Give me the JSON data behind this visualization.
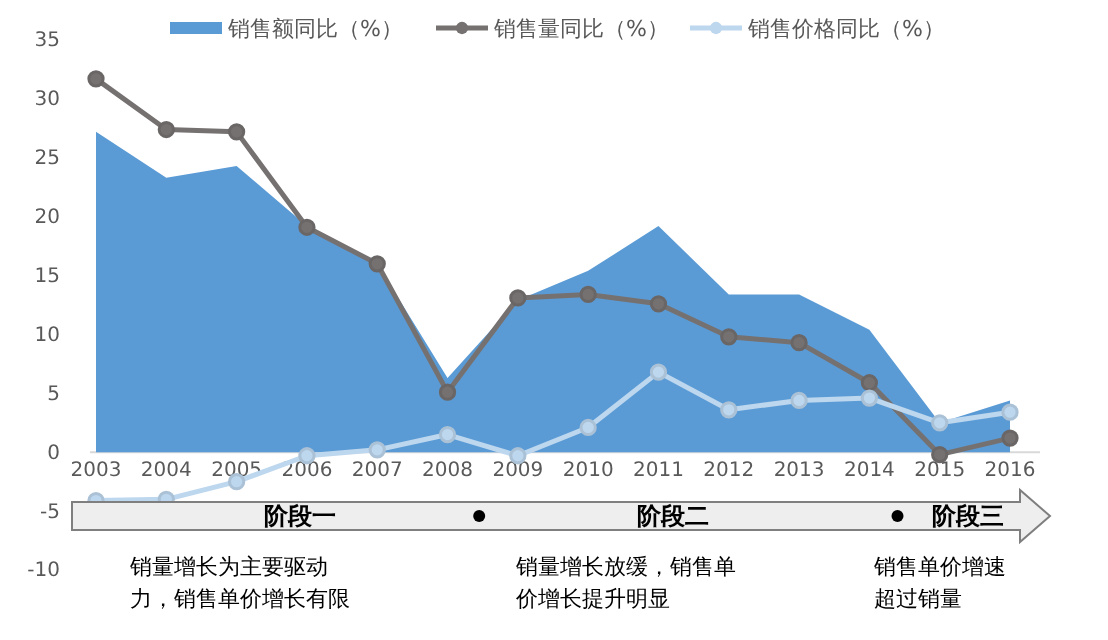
{
  "chart_data": {
    "type": "area",
    "categories": [
      "2003",
      "2004",
      "2005",
      "2006",
      "2007",
      "2008",
      "2009",
      "2010",
      "2011",
      "2012",
      "2013",
      "2014",
      "2015",
      "2016"
    ],
    "series": [
      {
        "name": "销售额同比（%）",
        "type": "area",
        "color": "#5b9bd5",
        "values": [
          27.2,
          23.3,
          24.3,
          19.2,
          16,
          6.3,
          12.9,
          15.4,
          19.2,
          13.4,
          13.4,
          10.4,
          2.5,
          4.4
        ]
      },
      {
        "name": "销售量同比（%）",
        "type": "line",
        "marker": "circle",
        "color": "#767171",
        "values": [
          31.7,
          27.4,
          27.2,
          19.1,
          16,
          5.1,
          13.1,
          13.4,
          12.6,
          9.8,
          9.3,
          5.9,
          -0.2,
          1.2
        ]
      },
      {
        "name": "销售价格同比（%）",
        "type": "line",
        "marker": "circle",
        "color": "#bdd7ee",
        "values": [
          -4.1,
          -4,
          -2.5,
          -0.3,
          0.2,
          1.5,
          -0.3,
          2.1,
          6.8,
          3.6,
          4.4,
          4.6,
          2.5,
          3.4
        ]
      }
    ],
    "ylim": [
      -10,
      35
    ],
    "yticks": [
      -10,
      -5,
      0,
      5,
      10,
      15,
      20,
      25,
      30,
      35
    ],
    "grid": false,
    "legend": "top",
    "line_style": "solid",
    "annotations": [
      "阶段一",
      "阶段二",
      "阶段三",
      "销量增长为主要驱动力，销售单价增长有限",
      "销量增长放缓，销售单价增长提升明显",
      "销售单价增速超过销量"
    ]
  }
}
